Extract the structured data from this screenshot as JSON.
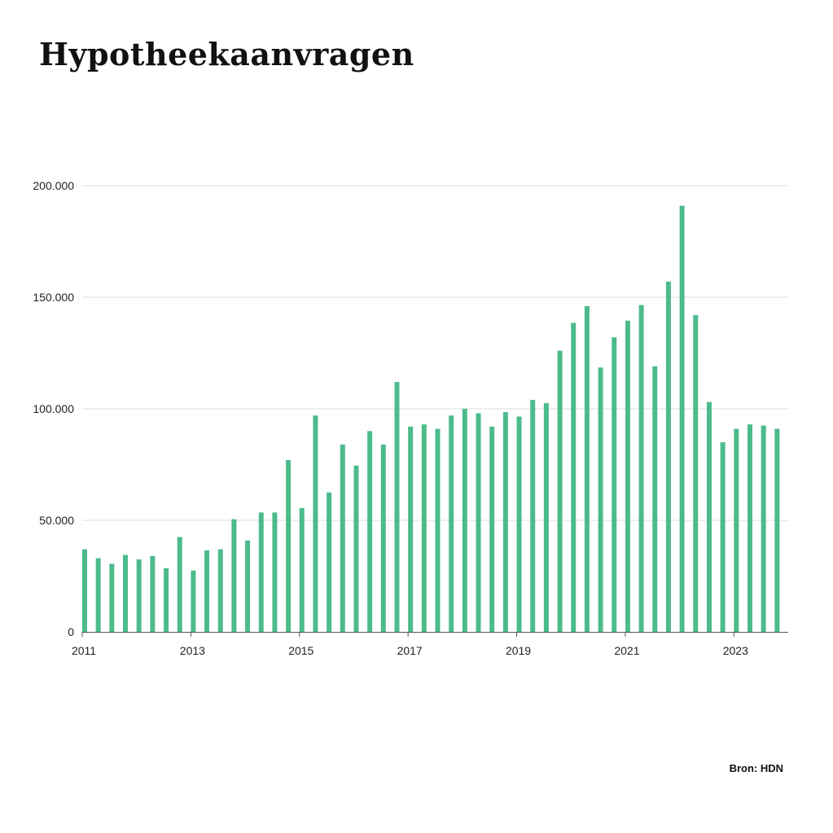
{
  "title": "Hypotheekaanvragen",
  "source": "Bron: HDN",
  "chart_data": {
    "type": "bar",
    "title": "Hypotheekaanvragen",
    "xlabel": "",
    "ylabel": "",
    "ylim": [
      0,
      200000
    ],
    "grid": true,
    "bar_color": "#4cbb8b",
    "y_ticks": [
      {
        "value": 0,
        "label": "0"
      },
      {
        "value": 50000,
        "label": "50.000"
      },
      {
        "value": 100000,
        "label": "100.000"
      },
      {
        "value": 150000,
        "label": "150.000"
      },
      {
        "value": 200000,
        "label": "200.000"
      }
    ],
    "x_ticks": [
      "2011",
      "2013",
      "2015",
      "2017",
      "2019",
      "2021",
      "2023"
    ],
    "categories": [
      "2011 Q1",
      "2011 Q2",
      "2011 Q3",
      "2011 Q4",
      "2012 Q1",
      "2012 Q2",
      "2012 Q3",
      "2012 Q4",
      "2013 Q1",
      "2013 Q2",
      "2013 Q3",
      "2013 Q4",
      "2014 Q1",
      "2014 Q2",
      "2014 Q3",
      "2014 Q4",
      "2015 Q1",
      "2015 Q2",
      "2015 Q3",
      "2015 Q4",
      "2016 Q1",
      "2016 Q2",
      "2016 Q3",
      "2016 Q4",
      "2017 Q1",
      "2017 Q2",
      "2017 Q3",
      "2017 Q4",
      "2018 Q1",
      "2018 Q2",
      "2018 Q3",
      "2018 Q4",
      "2019 Q1",
      "2019 Q2",
      "2019 Q3",
      "2019 Q4",
      "2020 Q1",
      "2020 Q2",
      "2020 Q3",
      "2020 Q4",
      "2021 Q1",
      "2021 Q2",
      "2021 Q3",
      "2021 Q4",
      "2022 Q1",
      "2022 Q2",
      "2022 Q3",
      "2022 Q4",
      "2023 Q1",
      "2023 Q2",
      "2023 Q3",
      "2023 Q4"
    ],
    "values": [
      37000,
      33000,
      30500,
      34500,
      32500,
      34000,
      28500,
      42500,
      27500,
      36500,
      37000,
      50500,
      41000,
      53500,
      53500,
      77000,
      55500,
      97000,
      62500,
      84000,
      74500,
      90000,
      84000,
      112000,
      92000,
      93000,
      91000,
      97000,
      100000,
      98000,
      92000,
      98500,
      96500,
      104000,
      102500,
      126000,
      138500,
      146000,
      118500,
      132000,
      139500,
      146500,
      119000,
      157000,
      191000,
      142000,
      103000,
      85000,
      91000,
      93000,
      92500,
      91000
    ]
  }
}
